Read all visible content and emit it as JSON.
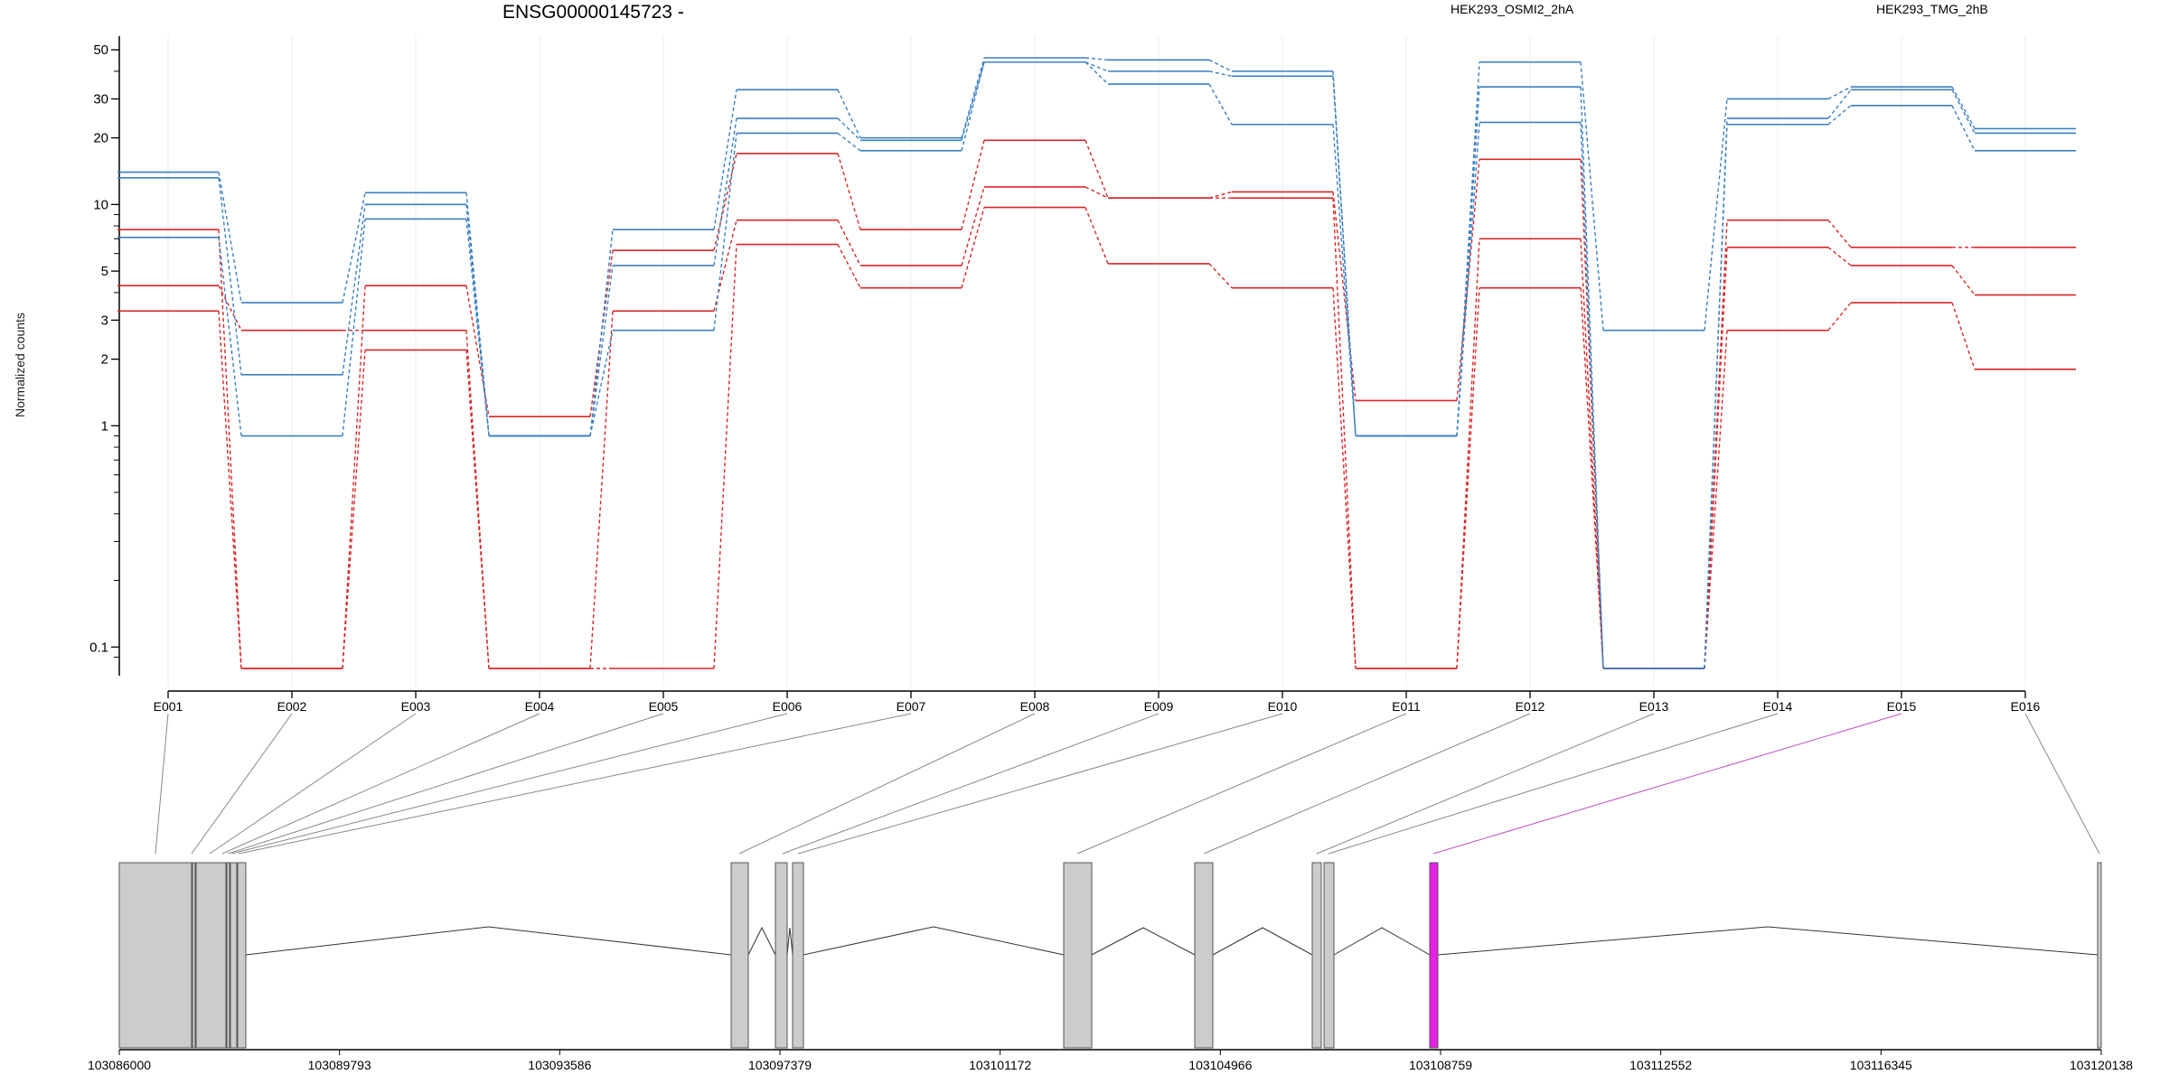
{
  "title": "ENSG00000145723 -",
  "ylabel": "Normalized counts",
  "chart_data": {
    "type": "line",
    "title": "ENSG00000145723 -",
    "ylabel": "Normalized counts",
    "yscale": "log",
    "ylim": [
      0.08,
      55
    ],
    "yticks": [
      0.1,
      1,
      2,
      3,
      5,
      10,
      20,
      30,
      50
    ],
    "ytick_labels": [
      "0.1",
      "1",
      "2",
      "3",
      "5",
      "10",
      "20",
      "30",
      "50"
    ],
    "categories": [
      "E001",
      "E002",
      "E003",
      "E004",
      "E005",
      "E006",
      "E007",
      "E008",
      "E009",
      "E010",
      "E011",
      "E012",
      "E013",
      "E014",
      "E015",
      "E016"
    ],
    "groups": [
      {
        "name": "HEK293_OSMI2_2hA",
        "color": "#d62728"
      },
      {
        "name": "HEK293_TMG_2hB",
        "color": "#3a7fbf"
      }
    ],
    "series": [
      {
        "group": 0,
        "values": [
          7.7,
          0.08,
          4.3,
          1.1,
          6.2,
          17,
          7.7,
          19.5,
          10.7,
          11.4,
          1.3,
          16,
          0.08,
          8.5,
          6.4,
          6.4
        ]
      },
      {
        "group": 0,
        "values": [
          4.3,
          2.7,
          2.7,
          0.08,
          3.3,
          8.5,
          5.3,
          12,
          10.7,
          10.7,
          0.08,
          7,
          0.08,
          6.4,
          5.3,
          3.9
        ]
      },
      {
        "group": 0,
        "values": [
          3.3,
          0.08,
          2.2,
          0.08,
          0.08,
          6.6,
          4.2,
          9.7,
          5.4,
          4.2,
          0.08,
          4.2,
          0.08,
          2.7,
          3.6,
          1.8
        ]
      },
      {
        "group": 1,
        "values": [
          14,
          3.6,
          11.3,
          0.9,
          7.7,
          33,
          20,
          46,
          45,
          40,
          0.9,
          44,
          2.7,
          30,
          34,
          22
        ]
      },
      {
        "group": 1,
        "values": [
          13.2,
          1.7,
          10,
          0.9,
          5.3,
          24.5,
          19.5,
          44,
          40,
          38,
          0.9,
          34,
          0.08,
          24.5,
          33,
          21
        ]
      },
      {
        "group": 1,
        "values": [
          7.1,
          0.9,
          8.6,
          0.9,
          2.7,
          21,
          17.5,
          44,
          35,
          23,
          0.9,
          23.5,
          0.08,
          23,
          28,
          17.5
        ]
      }
    ],
    "genomic_axis": {
      "tick_labels": [
        "103086000",
        "103089793",
        "103093586",
        "103097379",
        "103101172",
        "103104966",
        "103108759",
        "103112552",
        "103116345",
        "103120138"
      ]
    },
    "highlight_exon": "E015",
    "highlight_color": "#e61ee6"
  }
}
